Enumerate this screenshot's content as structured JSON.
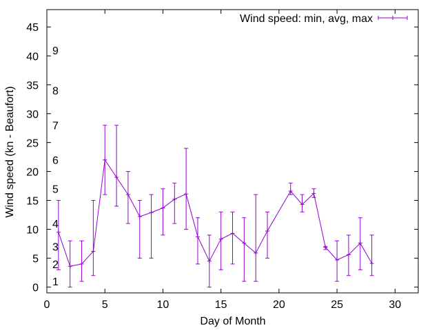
{
  "chart_data": {
    "type": "line",
    "xlabel": "Day of Month",
    "ylabel": "Wind speed (kn - Beaufort)",
    "xlim": [
      0,
      32
    ],
    "ylim": [
      -1,
      48
    ],
    "xticks": [
      0,
      5,
      10,
      15,
      20,
      25,
      30
    ],
    "yticks": [
      0,
      5,
      10,
      15,
      20,
      25,
      30,
      35,
      40,
      45
    ],
    "beaufort_labels": [
      {
        "label": "1",
        "y": 1
      },
      {
        "label": "2",
        "y": 4
      },
      {
        "label": "3",
        "y": 7
      },
      {
        "label": "4",
        "y": 11
      },
      {
        "label": "5",
        "y": 17
      },
      {
        "label": "6",
        "y": 22
      },
      {
        "label": "7",
        "y": 28
      },
      {
        "label": "8",
        "y": 34
      },
      {
        "label": "9",
        "y": 41
      }
    ],
    "grid": false,
    "legend_position": "top-right",
    "series": [
      {
        "name": "Wind speed: min, avg, max",
        "color": "#9400d3",
        "points": [
          {
            "x": 1,
            "y": 9.5,
            "min": 3,
            "max": 15
          },
          {
            "x": 2,
            "y": 3.6,
            "min": 0,
            "max": 8
          },
          {
            "x": 3,
            "y": 4.0,
            "min": 1,
            "max": 8
          },
          {
            "x": 4,
            "y": 6.2,
            "min": 2,
            "max": 15
          },
          {
            "x": 5,
            "y": 22.0,
            "min": 16,
            "max": 28
          },
          {
            "x": 6,
            "y": 19.0,
            "min": 14,
            "max": 28
          },
          {
            "x": 7,
            "y": 16.0,
            "min": 11,
            "max": 20
          },
          {
            "x": 8,
            "y": 12.2,
            "min": 5,
            "max": 15
          },
          {
            "x": 9,
            "y": 12.9,
            "min": 5,
            "max": 16
          },
          {
            "x": 10,
            "y": 13.7,
            "min": 9,
            "max": 17
          },
          {
            "x": 11,
            "y": 15.2,
            "min": 11,
            "max": 18
          },
          {
            "x": 12,
            "y": 16.1,
            "min": 10,
            "max": 24
          },
          {
            "x": 13,
            "y": 8.7,
            "min": 4,
            "max": 12
          },
          {
            "x": 14,
            "y": 4.5,
            "min": 0,
            "max": 9
          },
          {
            "x": 15,
            "y": 8.3,
            "min": 3,
            "max": 13
          },
          {
            "x": 16,
            "y": 9.3,
            "min": 4,
            "max": 13
          },
          {
            "x": 17,
            "y": 7.6,
            "min": 1,
            "max": 12
          },
          {
            "x": 18,
            "y": 5.9,
            "min": 1,
            "max": 16
          },
          {
            "x": 19,
            "y": 9.7,
            "min": 5,
            "max": 13
          },
          {
            "x": 21,
            "y": 16.6,
            "min": 16,
            "max": 18
          },
          {
            "x": 22,
            "y": 14.3,
            "min": 13,
            "max": 16
          },
          {
            "x": 23,
            "y": 16.2,
            "min": 15.5,
            "max": 17
          },
          {
            "x": 24,
            "y": 6.9,
            "min": 6.5,
            "max": 7
          },
          {
            "x": 25,
            "y": 4.7,
            "min": 1,
            "max": 8
          },
          {
            "x": 26,
            "y": 5.6,
            "min": 2,
            "max": 9
          },
          {
            "x": 27,
            "y": 7.6,
            "min": 3,
            "max": 12
          },
          {
            "x": 28,
            "y": 4.1,
            "min": 2,
            "max": 9
          }
        ]
      }
    ]
  }
}
